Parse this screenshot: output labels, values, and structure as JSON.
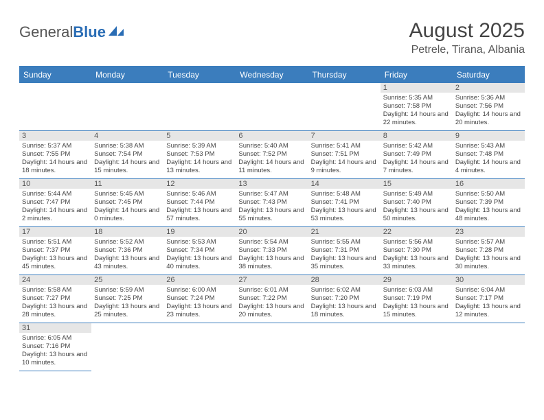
{
  "logo": {
    "general": "General",
    "blue": "Blue"
  },
  "title": "August 2025",
  "location": "Petrele, Tirana, Albania",
  "colors": {
    "header_bg": "#3b7dbd",
    "header_text": "#ffffff",
    "daynum_bg": "#e6e6e6",
    "text": "#444444",
    "border": "#3b7dbd"
  },
  "columns": [
    "Sunday",
    "Monday",
    "Tuesday",
    "Wednesday",
    "Thursday",
    "Friday",
    "Saturday"
  ],
  "weeks": [
    [
      null,
      null,
      null,
      null,
      null,
      {
        "n": "1",
        "sr": "5:35 AM",
        "ss": "7:58 PM",
        "dl": "14 hours and 22 minutes."
      },
      {
        "n": "2",
        "sr": "5:36 AM",
        "ss": "7:56 PM",
        "dl": "14 hours and 20 minutes."
      }
    ],
    [
      {
        "n": "3",
        "sr": "5:37 AM",
        "ss": "7:55 PM",
        "dl": "14 hours and 18 minutes."
      },
      {
        "n": "4",
        "sr": "5:38 AM",
        "ss": "7:54 PM",
        "dl": "14 hours and 15 minutes."
      },
      {
        "n": "5",
        "sr": "5:39 AM",
        "ss": "7:53 PM",
        "dl": "14 hours and 13 minutes."
      },
      {
        "n": "6",
        "sr": "5:40 AM",
        "ss": "7:52 PM",
        "dl": "14 hours and 11 minutes."
      },
      {
        "n": "7",
        "sr": "5:41 AM",
        "ss": "7:51 PM",
        "dl": "14 hours and 9 minutes."
      },
      {
        "n": "8",
        "sr": "5:42 AM",
        "ss": "7:49 PM",
        "dl": "14 hours and 7 minutes."
      },
      {
        "n": "9",
        "sr": "5:43 AM",
        "ss": "7:48 PM",
        "dl": "14 hours and 4 minutes."
      }
    ],
    [
      {
        "n": "10",
        "sr": "5:44 AM",
        "ss": "7:47 PM",
        "dl": "14 hours and 2 minutes."
      },
      {
        "n": "11",
        "sr": "5:45 AM",
        "ss": "7:45 PM",
        "dl": "14 hours and 0 minutes."
      },
      {
        "n": "12",
        "sr": "5:46 AM",
        "ss": "7:44 PM",
        "dl": "13 hours and 57 minutes."
      },
      {
        "n": "13",
        "sr": "5:47 AM",
        "ss": "7:43 PM",
        "dl": "13 hours and 55 minutes."
      },
      {
        "n": "14",
        "sr": "5:48 AM",
        "ss": "7:41 PM",
        "dl": "13 hours and 53 minutes."
      },
      {
        "n": "15",
        "sr": "5:49 AM",
        "ss": "7:40 PM",
        "dl": "13 hours and 50 minutes."
      },
      {
        "n": "16",
        "sr": "5:50 AM",
        "ss": "7:39 PM",
        "dl": "13 hours and 48 minutes."
      }
    ],
    [
      {
        "n": "17",
        "sr": "5:51 AM",
        "ss": "7:37 PM",
        "dl": "13 hours and 45 minutes."
      },
      {
        "n": "18",
        "sr": "5:52 AM",
        "ss": "7:36 PM",
        "dl": "13 hours and 43 minutes."
      },
      {
        "n": "19",
        "sr": "5:53 AM",
        "ss": "7:34 PM",
        "dl": "13 hours and 40 minutes."
      },
      {
        "n": "20",
        "sr": "5:54 AM",
        "ss": "7:33 PM",
        "dl": "13 hours and 38 minutes."
      },
      {
        "n": "21",
        "sr": "5:55 AM",
        "ss": "7:31 PM",
        "dl": "13 hours and 35 minutes."
      },
      {
        "n": "22",
        "sr": "5:56 AM",
        "ss": "7:30 PM",
        "dl": "13 hours and 33 minutes."
      },
      {
        "n": "23",
        "sr": "5:57 AM",
        "ss": "7:28 PM",
        "dl": "13 hours and 30 minutes."
      }
    ],
    [
      {
        "n": "24",
        "sr": "5:58 AM",
        "ss": "7:27 PM",
        "dl": "13 hours and 28 minutes."
      },
      {
        "n": "25",
        "sr": "5:59 AM",
        "ss": "7:25 PM",
        "dl": "13 hours and 25 minutes."
      },
      {
        "n": "26",
        "sr": "6:00 AM",
        "ss": "7:24 PM",
        "dl": "13 hours and 23 minutes."
      },
      {
        "n": "27",
        "sr": "6:01 AM",
        "ss": "7:22 PM",
        "dl": "13 hours and 20 minutes."
      },
      {
        "n": "28",
        "sr": "6:02 AM",
        "ss": "7:20 PM",
        "dl": "13 hours and 18 minutes."
      },
      {
        "n": "29",
        "sr": "6:03 AM",
        "ss": "7:19 PM",
        "dl": "13 hours and 15 minutes."
      },
      {
        "n": "30",
        "sr": "6:04 AM",
        "ss": "7:17 PM",
        "dl": "13 hours and 12 minutes."
      }
    ],
    [
      {
        "n": "31",
        "sr": "6:05 AM",
        "ss": "7:16 PM",
        "dl": "13 hours and 10 minutes."
      },
      null,
      null,
      null,
      null,
      null,
      null
    ]
  ],
  "labels": {
    "sunrise": "Sunrise:",
    "sunset": "Sunset:",
    "daylight": "Daylight:"
  }
}
